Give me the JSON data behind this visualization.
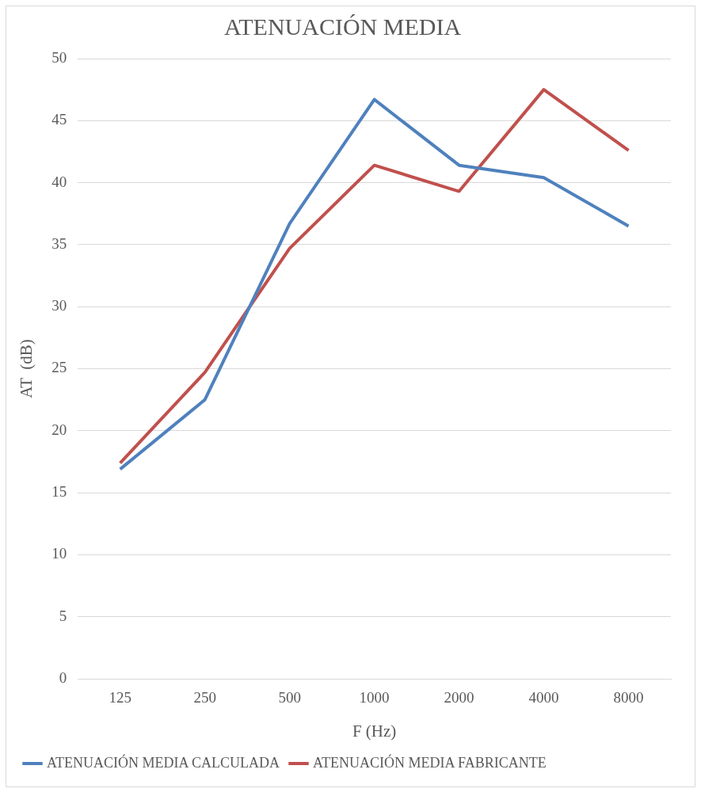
{
  "chart_data": {
    "type": "line",
    "title": "ATENUACIÓN MEDIA",
    "xlabel": "F (Hz)",
    "ylabel": "AT  (dB)",
    "categories": [
      "125",
      "250",
      "500",
      "1000",
      "2000",
      "4000",
      "8000"
    ],
    "series": [
      {
        "name": "ATENUACIÓN MEDIA CALCULADA",
        "color": "#4f81bd",
        "values": [
          16.9,
          22.5,
          36.7,
          46.7,
          41.4,
          40.4,
          36.5
        ]
      },
      {
        "name": "ATENUACIÓN MEDIA FABRICANTE",
        "color": "#c0504d",
        "values": [
          17.4,
          24.7,
          34.7,
          41.4,
          39.3,
          47.5,
          42.6
        ]
      }
    ],
    "ylim": [
      0,
      50
    ],
    "yticks": [
      0,
      5,
      10,
      15,
      20,
      25,
      30,
      35,
      40,
      45,
      50
    ],
    "grid": "y",
    "legend": "bottom",
    "marker": "none",
    "line_style": "solid"
  }
}
